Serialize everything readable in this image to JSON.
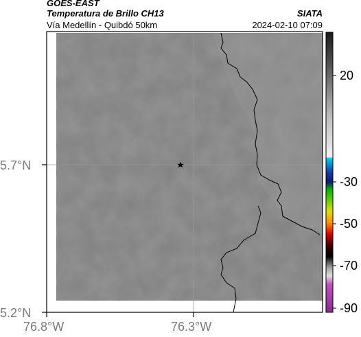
{
  "header": {
    "satellite": "GOES-EAST",
    "product": "Temperatura de Brillo CH13",
    "source": "SIATA",
    "region": "Vía Medellín - Quibdó 50km",
    "timestamp": "2024-02-10 07:09"
  },
  "map": {
    "lat_ticks": [
      {
        "label": "5.7°N",
        "value": 5.7
      },
      {
        "label": "5.2°N",
        "value": 5.2
      }
    ],
    "lon_ticks": [
      {
        "label": "76.8°W",
        "value": -76.8
      },
      {
        "label": "76.3°W",
        "value": -76.3
      }
    ],
    "marker": {
      "name": "star",
      "lon": -76.32,
      "lat": 5.7
    },
    "colors": {
      "background": "#808080",
      "border_line": "#000000",
      "gridline": "#9a9a9a"
    }
  },
  "colorbar": {
    "ticks": [
      {
        "label": "20",
        "value": 20
      },
      {
        "label": "-30",
        "value": -30
      },
      {
        "label": "-50",
        "value": -50
      },
      {
        "label": "-70",
        "value": -70
      },
      {
        "label": "-90",
        "value": -90
      }
    ]
  }
}
